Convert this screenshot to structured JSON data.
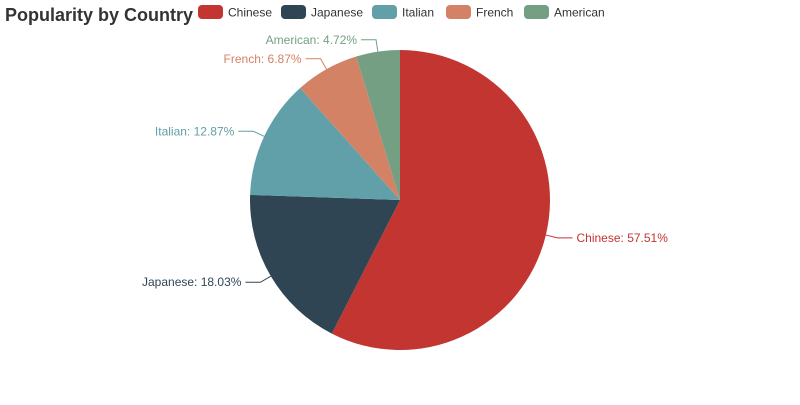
{
  "chart_data": {
    "type": "pie",
    "title": "Popularity by Country",
    "legend_position": "top",
    "slices": [
      {
        "name": "Chinese",
        "value": 57.51,
        "label": "Chinese: 57.51%",
        "color": "#c23531"
      },
      {
        "name": "Japanese",
        "value": 18.03,
        "label": "Japanese: 18.03%",
        "color": "#2f4554"
      },
      {
        "name": "Italian",
        "value": 12.87,
        "label": "Italian: 12.87%",
        "color": "#61a0a8"
      },
      {
        "name": "French",
        "value": 6.87,
        "label": "French: 6.87%",
        "color": "#d48265"
      },
      {
        "name": "American",
        "value": 4.72,
        "label": "American: 4.72%",
        "color": "#749f83"
      }
    ]
  }
}
